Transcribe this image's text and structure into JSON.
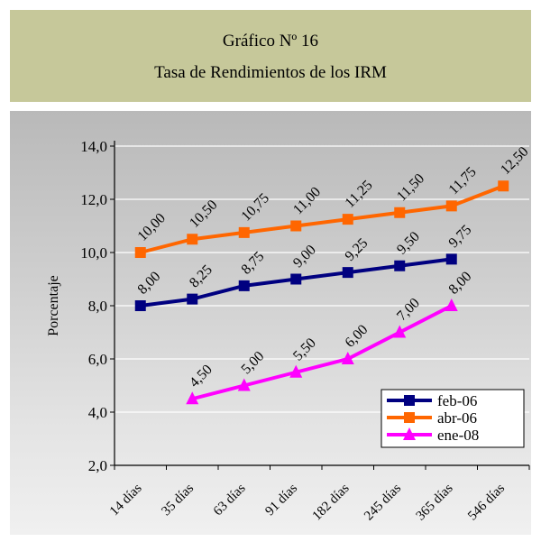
{
  "header": {
    "line1": "Gráfico Nº 16",
    "line2": "Tasa de Rendimientos de los IRM"
  },
  "chart_data": {
    "type": "line",
    "title": "Gráfico Nº 16",
    "subtitle": "Tasa de Rendimientos de los IRM",
    "xlabel": "",
    "ylabel": "Porcentaje",
    "ylim": [
      2.0,
      14.0
    ],
    "yticks": [
      "2,0",
      "4,0",
      "6,0",
      "8,0",
      "10,0",
      "12,0",
      "14,0"
    ],
    "categories": [
      "14 días",
      "35 días",
      "63 días",
      "91 días",
      "182 días",
      "245 días",
      "365 días",
      "546 días"
    ],
    "grid": true,
    "legend_position": "bottom-right",
    "series": [
      {
        "name": "feb-06",
        "color": "#000080",
        "marker": "square",
        "values": [
          8.0,
          8.25,
          8.75,
          9.0,
          9.25,
          9.5,
          9.75,
          null
        ],
        "labels": [
          "8,00",
          "8,25",
          "8,75",
          "9,00",
          "9,25",
          "9,50",
          "9,75",
          ""
        ]
      },
      {
        "name": "abr-06",
        "color": "#ff6600",
        "marker": "square",
        "values": [
          10.0,
          10.5,
          10.75,
          11.0,
          11.25,
          11.5,
          11.75,
          12.5
        ],
        "labels": [
          "10,00",
          "10,50",
          "10,75",
          "11,00",
          "11,25",
          "11,50",
          "11,75",
          "12,50"
        ]
      },
      {
        "name": "ene-08",
        "color": "#ff00ff",
        "marker": "triangle",
        "values": [
          null,
          4.5,
          5.0,
          5.5,
          6.0,
          7.0,
          8.0,
          null
        ],
        "labels": [
          "",
          "4,50",
          "5,00",
          "5,50",
          "6,00",
          "7,00",
          "8,00",
          ""
        ]
      }
    ]
  }
}
